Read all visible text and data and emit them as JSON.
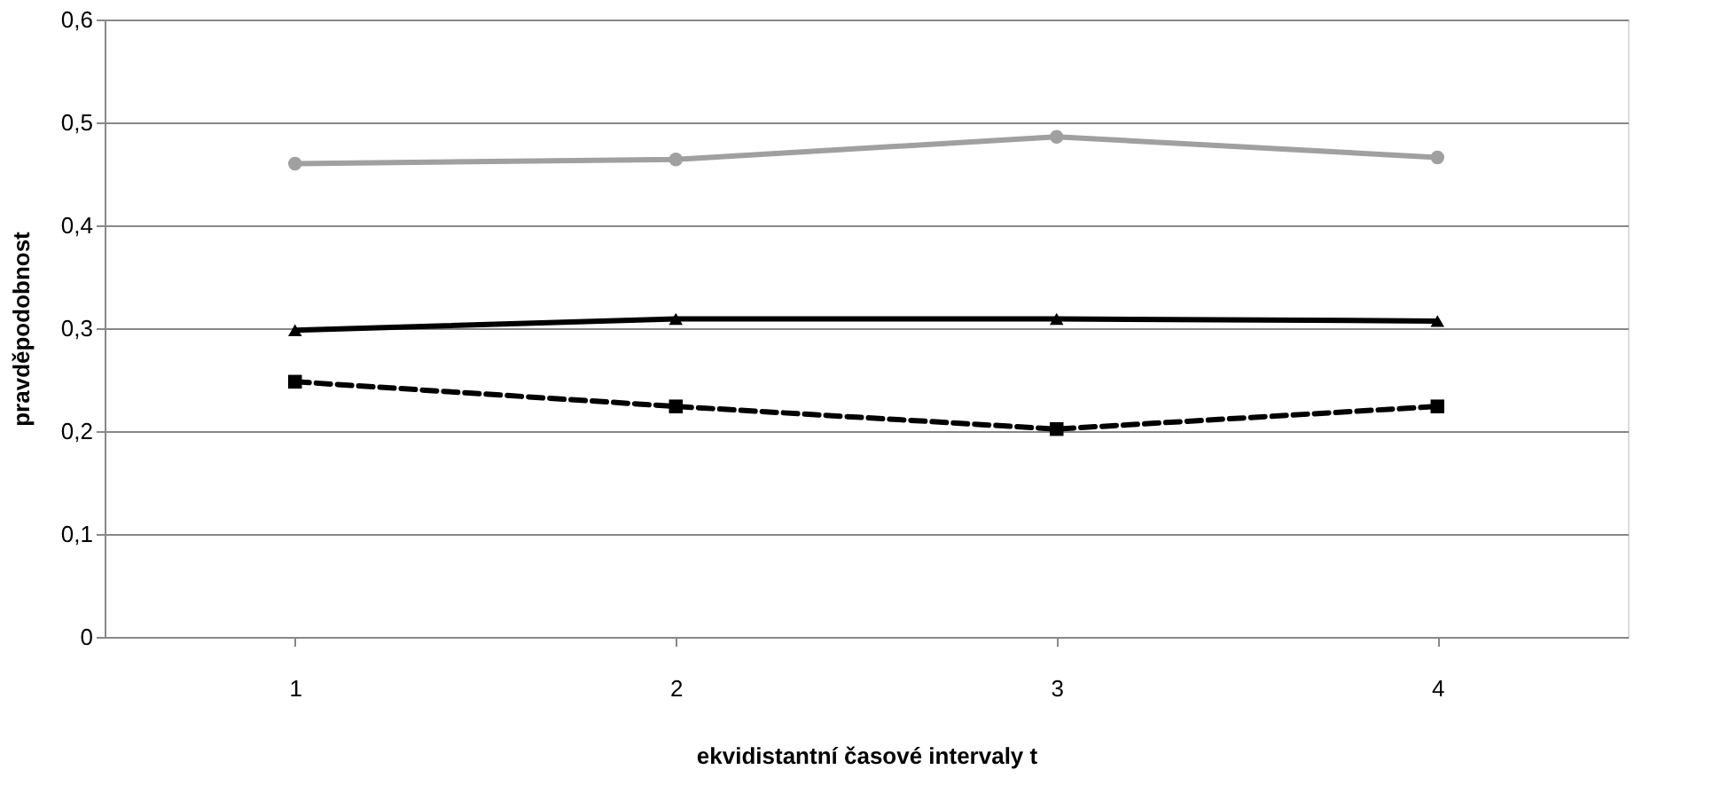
{
  "chart_data": {
    "type": "line",
    "xlabel": "ekvidistantní časové intervaly t",
    "ylabel": "pravděpodobnost",
    "categories": [
      "1",
      "2",
      "3",
      "4"
    ],
    "series": [
      {
        "color": "#a0a0a0",
        "values": [
          0.46,
          0.464,
          0.486,
          0.466
        ],
        "marker": "circle",
        "line_style": "solid"
      },
      {
        "color": "#000000",
        "values": [
          0.298,
          0.309,
          0.309,
          0.307
        ],
        "marker": "triangle",
        "line_style": "solid"
      },
      {
        "color": "#000000",
        "values": [
          0.248,
          0.224,
          0.202,
          0.224
        ],
        "marker": "square",
        "line_style": "dashed"
      }
    ],
    "ylim": [
      0,
      0.6
    ],
    "yticks": [
      0,
      {
        "value": 0.1,
        "label": "0,1"
      },
      {
        "value": 0.2,
        "label": "0,2"
      },
      {
        "value": 0.3,
        "label": "0,3"
      },
      {
        "value": 0.4,
        "label": "0,4"
      },
      {
        "value": 0.5,
        "label": "0,5"
      },
      {
        "value": 0.6,
        "label": "0,6"
      }
    ],
    "grid": "y"
  }
}
